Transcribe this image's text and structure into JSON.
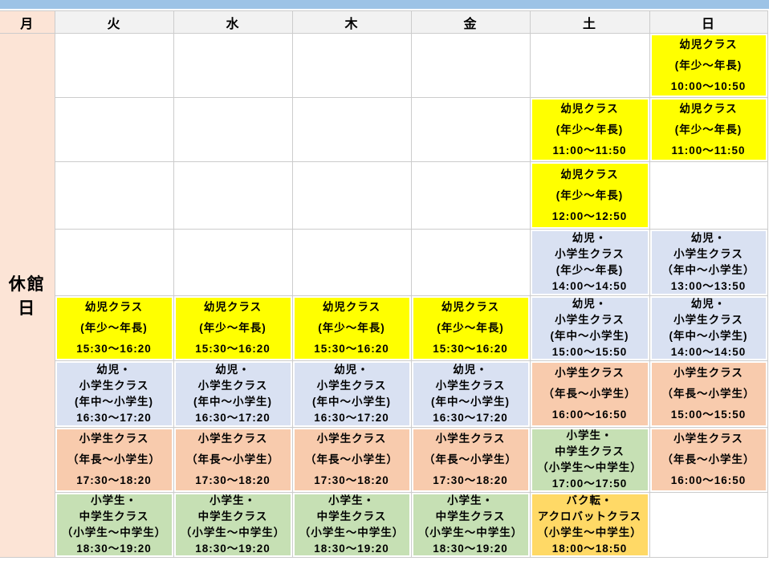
{
  "colors": {
    "accent_bar": "#9dc3e6",
    "header_bg": "#f2f2f2",
    "monday_bg": "#fce4d6",
    "grid_line": "#cccccc",
    "yellow": "#ffff00",
    "blue": "#d9e1f2",
    "orange": "#f8cbad",
    "green": "#c6e0b4",
    "gold": "#ffd966"
  },
  "header": {
    "days": [
      {
        "id": "mon",
        "label": "月"
      },
      {
        "id": "tue",
        "label": "火"
      },
      {
        "id": "wed",
        "label": "水"
      },
      {
        "id": "thu",
        "label": "木"
      },
      {
        "id": "fri",
        "label": "金"
      },
      {
        "id": "sat",
        "label": "土"
      },
      {
        "id": "sun",
        "label": "日"
      }
    ]
  },
  "monday_closed": {
    "label": "休館日"
  },
  "schedule": {
    "day_order": [
      "tue",
      "wed",
      "thu",
      "fri",
      "sat",
      "sun"
    ],
    "rows": [
      {
        "cells": [
          null,
          null,
          null,
          null,
          null,
          {
            "color": "yellow",
            "lines": [
              "幼児クラス",
              "(年少～年長)",
              "10:00～10:50"
            ]
          }
        ]
      },
      {
        "cells": [
          null,
          null,
          null,
          null,
          {
            "color": "yellow",
            "lines": [
              "幼児クラス",
              "(年少～年長)",
              "11:00～11:50"
            ]
          },
          {
            "color": "yellow",
            "lines": [
              "幼児クラス",
              "(年少～年長)",
              "11:00～11:50"
            ]
          }
        ]
      },
      {
        "cells": [
          null,
          null,
          null,
          null,
          {
            "color": "yellow",
            "lines": [
              "幼児クラス",
              "(年少～年長)",
              "12:00～12:50"
            ]
          },
          null
        ]
      },
      {
        "cells": [
          null,
          null,
          null,
          null,
          {
            "color": "blue",
            "lines": [
              "幼児・",
              "小学生クラス",
              "(年少～年長)",
              "14:00～14:50"
            ]
          },
          {
            "color": "blue",
            "lines": [
              "幼児・",
              "小学生クラス",
              "（年中～小学生）",
              "13:00～13:50"
            ]
          }
        ]
      },
      {
        "cells": [
          {
            "color": "yellow",
            "lines": [
              "幼児クラス",
              "(年少～年長)",
              "15:30～16:20"
            ]
          },
          {
            "color": "yellow",
            "lines": [
              "幼児クラス",
              "(年少～年長)",
              "15:30～16:20"
            ]
          },
          {
            "color": "yellow",
            "lines": [
              "幼児クラス",
              "(年少～年長)",
              "15:30～16:20"
            ]
          },
          {
            "color": "yellow",
            "lines": [
              "幼児クラス",
              "(年少～年長)",
              "15:30～16:20"
            ]
          },
          {
            "color": "blue",
            "lines": [
              "幼児・",
              "小学生クラス",
              "(年中～小学生)",
              "15:00～15:50"
            ]
          },
          {
            "color": "blue",
            "lines": [
              "幼児・",
              "小学生クラス",
              "(年中～小学生)",
              "14:00～14:50"
            ]
          }
        ]
      },
      {
        "cells": [
          {
            "color": "blue",
            "lines": [
              "幼児・",
              "小学生クラス",
              "(年中～小学生)",
              "16:30～17:20"
            ]
          },
          {
            "color": "blue",
            "lines": [
              "幼児・",
              "小学生クラス",
              "(年中～小学生)",
              "16:30～17:20"
            ]
          },
          {
            "color": "blue",
            "lines": [
              "幼児・",
              "小学生クラス",
              "(年中～小学生)",
              "16:30～17:20"
            ]
          },
          {
            "color": "blue",
            "lines": [
              "幼児・",
              "小学生クラス",
              "(年中～小学生)",
              "16:30～17:20"
            ]
          },
          {
            "color": "orange",
            "lines": [
              "小学生クラス",
              "（年長～小学生）",
              "16:00～16:50"
            ]
          },
          {
            "color": "orange",
            "lines": [
              "小学生クラス",
              "（年長～小学生）",
              "15:00～15:50"
            ]
          }
        ]
      },
      {
        "cells": [
          {
            "color": "orange",
            "lines": [
              "小学生クラス",
              "（年長～小学生）",
              "17:30～18:20"
            ]
          },
          {
            "color": "orange",
            "lines": [
              "小学生クラス",
              "（年長～小学生）",
              "17:30～18:20"
            ]
          },
          {
            "color": "orange",
            "lines": [
              "小学生クラス",
              "（年長～小学生）",
              "17:30～18:20"
            ]
          },
          {
            "color": "orange",
            "lines": [
              "小学生クラス",
              "（年長～小学生）",
              "17:30～18:20"
            ]
          },
          {
            "color": "green",
            "lines": [
              "小学生・",
              "中学生クラス",
              "（小学生～中学生）",
              "17:00～17:50"
            ]
          },
          {
            "color": "orange",
            "lines": [
              "小学生クラス",
              "（年長～小学生）",
              "16:00～16:50"
            ]
          }
        ]
      },
      {
        "cells": [
          {
            "color": "green",
            "lines": [
              "小学生・",
              "中学生クラス",
              "（小学生～中学生）",
              "18:30～19:20"
            ]
          },
          {
            "color": "green",
            "lines": [
              "小学生・",
              "中学生クラス",
              "（小学生～中学生）",
              "18:30～19:20"
            ]
          },
          {
            "color": "green",
            "lines": [
              "小学生・",
              "中学生クラス",
              "（小学生～中学生）",
              "18:30～19:20"
            ]
          },
          {
            "color": "green",
            "lines": [
              "小学生・",
              "中学生クラス",
              "（小学生～中学生）",
              "18:30～19:20"
            ]
          },
          {
            "color": "gold",
            "lines": [
              "バク転・",
              "アクロバットクラス",
              "（小学生～中学生）",
              "18:00～18:50"
            ]
          },
          null
        ]
      }
    ]
  }
}
